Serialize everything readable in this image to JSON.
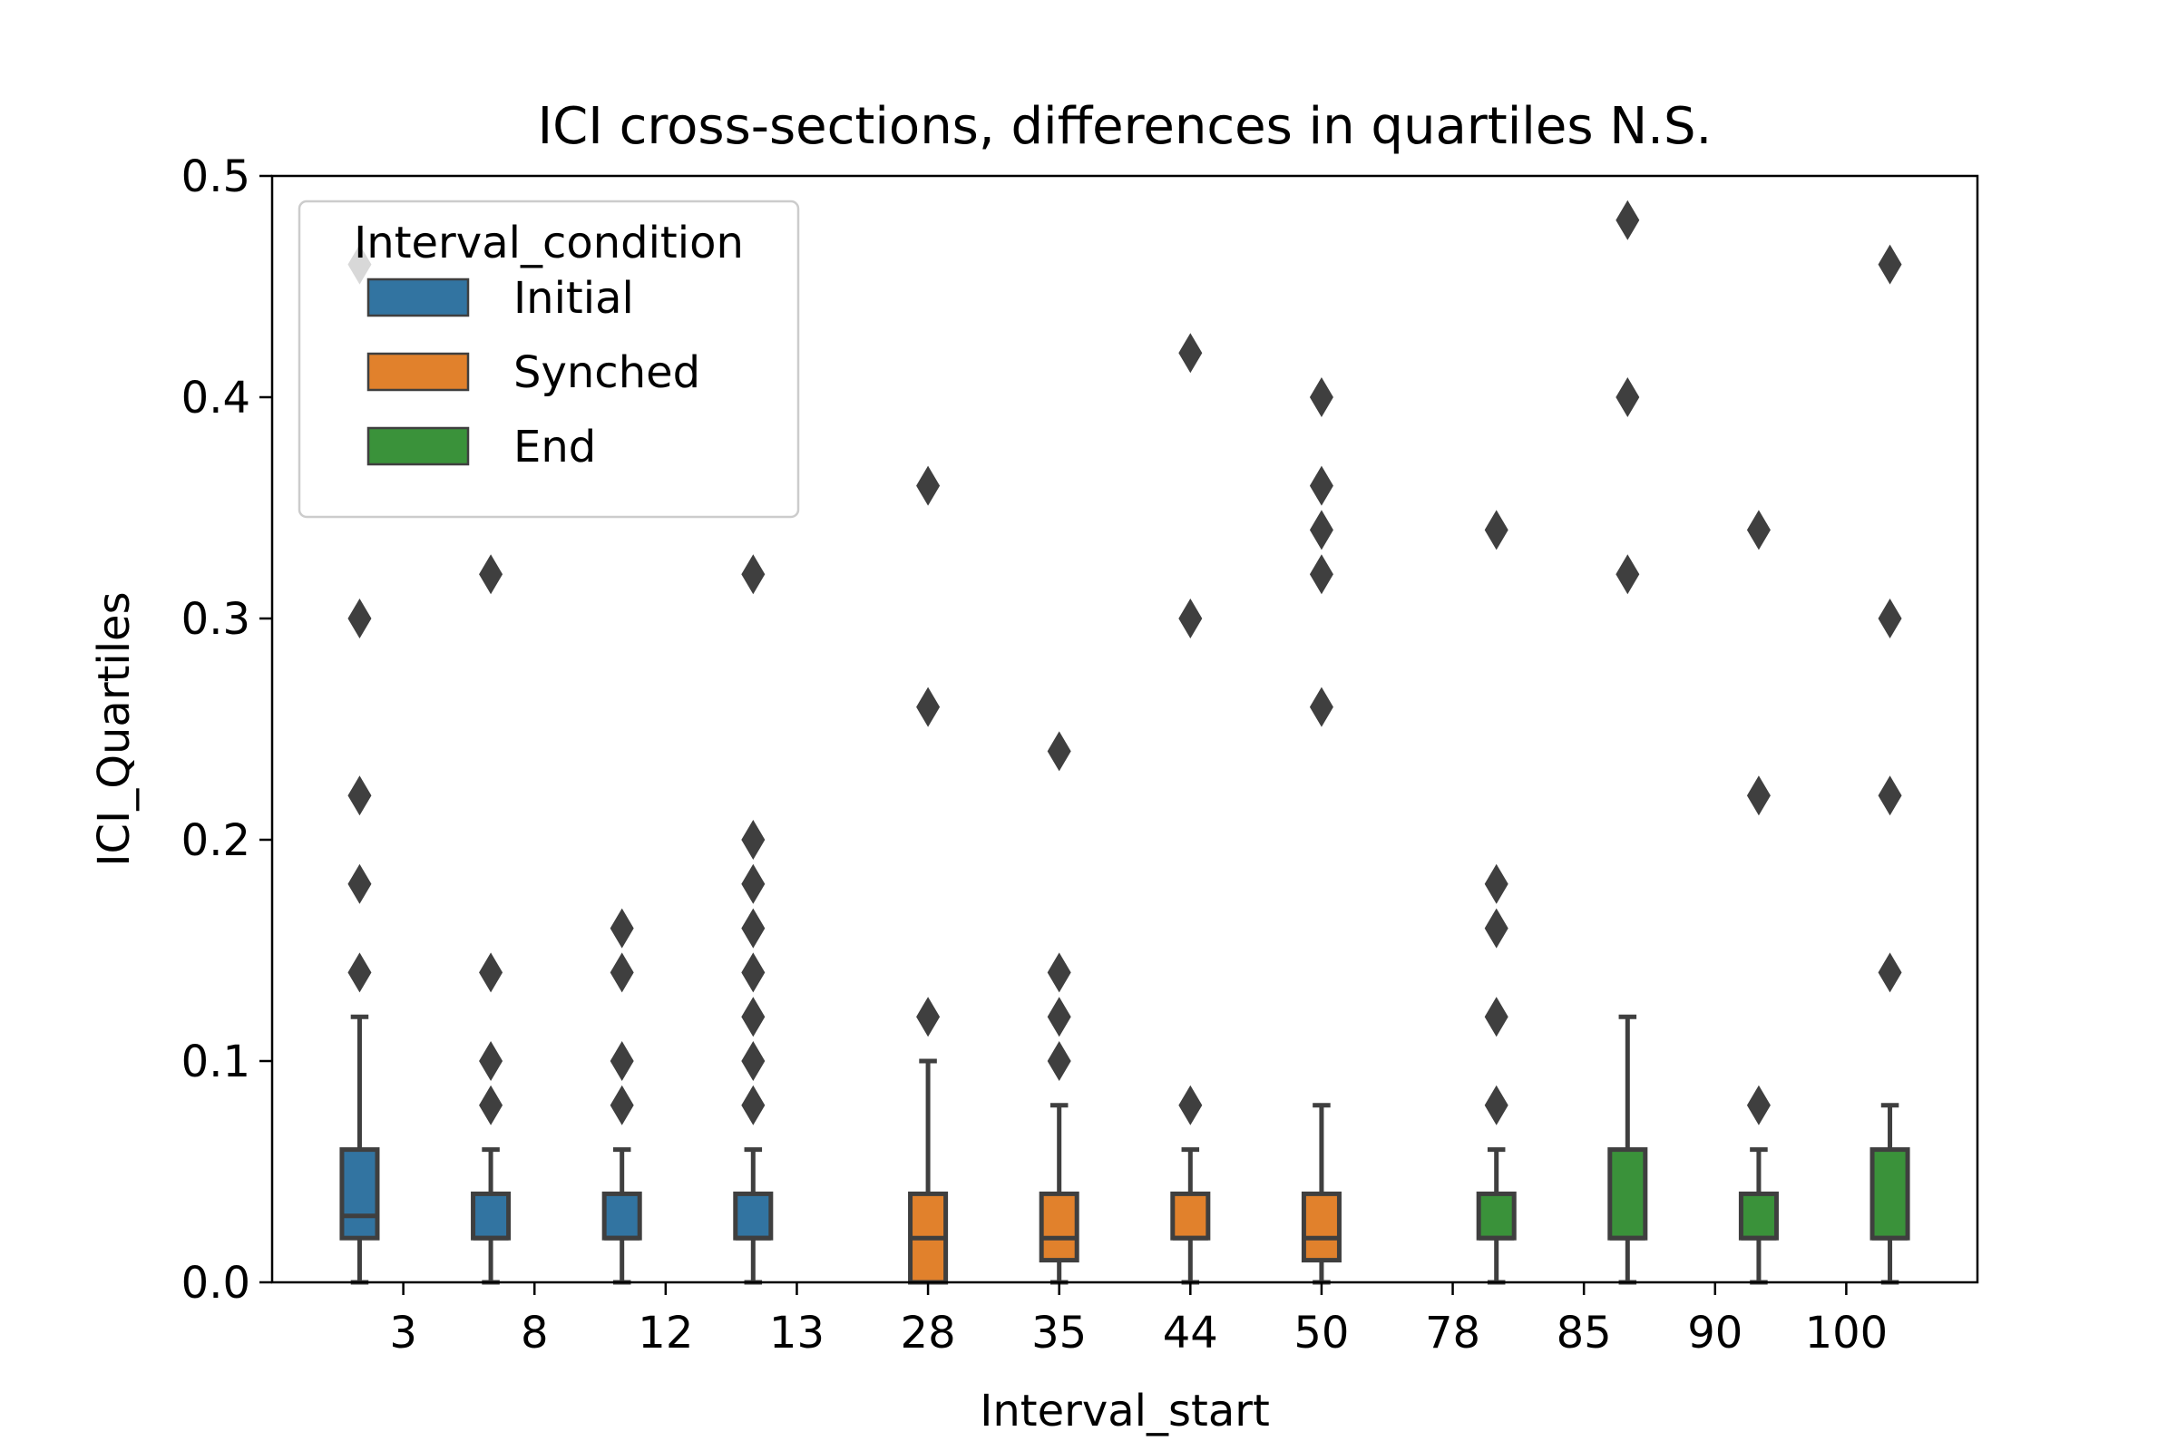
{
  "chart_data": {
    "type": "box",
    "title": "ICI cross-sections, differences in quartiles N.S.",
    "xlabel": "Interval_start",
    "ylabel": "ICI_Quartiles",
    "ylim": [
      0,
      0.5
    ],
    "yticks": [
      "0.0",
      "0.1",
      "0.2",
      "0.3",
      "0.4",
      "0.5"
    ],
    "categories": [
      "3",
      "8",
      "12",
      "13",
      "28",
      "35",
      "44",
      "50",
      "78",
      "85",
      "90",
      "100"
    ],
    "legend": {
      "title": "Interval_condition",
      "placement": "top-left",
      "entries": [
        {
          "name": "Initial",
          "color": "#3274a1"
        },
        {
          "name": "Synched",
          "color": "#e1812c"
        },
        {
          "name": "End",
          "color": "#3a923a"
        }
      ]
    },
    "boxes": [
      {
        "category": "3",
        "condition": "Initial",
        "whislo": 0,
        "q1": 0.02,
        "median": 0.03,
        "q3": 0.06,
        "whishi": 0.12,
        "fliers": [
          0.14,
          0.18,
          0.22,
          0.3,
          0.46
        ]
      },
      {
        "category": "8",
        "condition": "Initial",
        "whislo": 0,
        "q1": 0.02,
        "median": 0.02,
        "q3": 0.04,
        "whishi": 0.06,
        "fliers": [
          0.08,
          0.1,
          0.14,
          0.32
        ]
      },
      {
        "category": "12",
        "condition": "Initial",
        "whislo": 0,
        "q1": 0.02,
        "median": 0.02,
        "q3": 0.04,
        "whishi": 0.06,
        "fliers": [
          0.08,
          0.1,
          0.14,
          0.16
        ]
      },
      {
        "category": "13",
        "condition": "Initial",
        "whislo": 0,
        "q1": 0.02,
        "median": 0.02,
        "q3": 0.04,
        "whishi": 0.06,
        "fliers": [
          0.08,
          0.1,
          0.12,
          0.14,
          0.16,
          0.18,
          0.2,
          0.32
        ]
      },
      {
        "category": "28",
        "condition": "Synched",
        "whislo": 0,
        "q1": 0,
        "median": 0.02,
        "q3": 0.04,
        "whishi": 0.1,
        "fliers": [
          0.12,
          0.26,
          0.36
        ]
      },
      {
        "category": "35",
        "condition": "Synched",
        "whislo": 0,
        "q1": 0.01,
        "median": 0.02,
        "q3": 0.04,
        "whishi": 0.08,
        "fliers": [
          0.1,
          0.12,
          0.14,
          0.24
        ]
      },
      {
        "category": "44",
        "condition": "Synched",
        "whislo": 0,
        "q1": 0.02,
        "median": 0.02,
        "q3": 0.04,
        "whishi": 0.06,
        "fliers": [
          0.08,
          0.3,
          0.42
        ]
      },
      {
        "category": "50",
        "condition": "Synched",
        "whislo": 0,
        "q1": 0.01,
        "median": 0.02,
        "q3": 0.04,
        "whishi": 0.08,
        "fliers": [
          0.26,
          0.32,
          0.34,
          0.36,
          0.4
        ]
      },
      {
        "category": "78",
        "condition": "End",
        "whislo": 0,
        "q1": 0.02,
        "median": 0.02,
        "q3": 0.04,
        "whishi": 0.06,
        "fliers": [
          0.08,
          0.12,
          0.16,
          0.18,
          0.34
        ]
      },
      {
        "category": "85",
        "condition": "End",
        "whislo": 0,
        "q1": 0.02,
        "median": 0.02,
        "q3": 0.06,
        "whishi": 0.12,
        "fliers": [
          0.32,
          0.4,
          0.48
        ]
      },
      {
        "category": "90",
        "condition": "End",
        "whislo": 0,
        "q1": 0.02,
        "median": 0.02,
        "q3": 0.04,
        "whishi": 0.06,
        "fliers": [
          0.08,
          0.22,
          0.34
        ]
      },
      {
        "category": "100",
        "condition": "End",
        "whislo": 0,
        "q1": 0.02,
        "median": 0.02,
        "q3": 0.06,
        "whishi": 0.08,
        "fliers": [
          0.14,
          0.22,
          0.3,
          0.46
        ]
      }
    ],
    "grid": false,
    "colors": {
      "axes": "#000000",
      "box_edge": "#3f3f3f",
      "flier": "#3f3f3f",
      "legend_border": "#cccccc"
    }
  }
}
